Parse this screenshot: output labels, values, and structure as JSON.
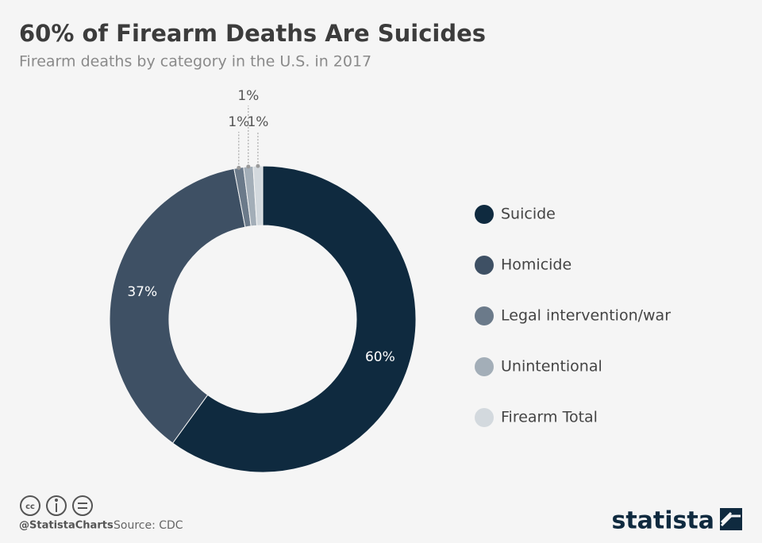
{
  "chart_data": {
    "type": "donut",
    "title": "60% of Firearm Deaths Are Suicides",
    "subtitle": "Firearm deaths by category in the U.S. in 2017",
    "categories": [
      "Suicide",
      "Homicide",
      "Legal intervention/war",
      "Unintentional",
      "Firearm Total"
    ],
    "values": [
      60,
      37,
      1,
      1,
      1
    ],
    "value_labels": [
      "60%",
      "37%",
      "1%",
      "1%",
      "1%"
    ],
    "colors": [
      "#0f2a3f",
      "#3e5064",
      "#6b7a8a",
      "#a3aeb8",
      "#d3d9de"
    ],
    "source": "Source: CDC",
    "credit": "@StatistaCharts",
    "brand": "statista"
  }
}
